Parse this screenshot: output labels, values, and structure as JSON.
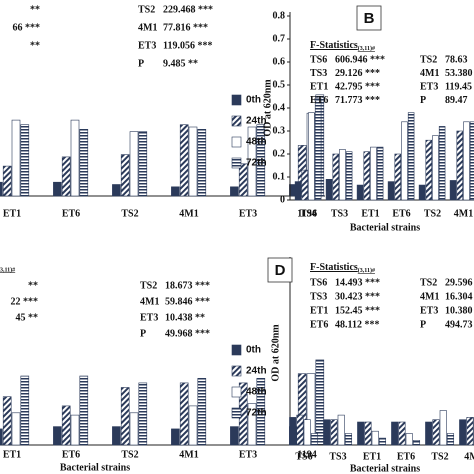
{
  "chart_data": [
    {
      "type": "bar",
      "categories": [
        "ET1",
        "ET6",
        "TS2",
        "4M1",
        "ET3",
        "1194"
      ],
      "series": [
        {
          "name": "0th",
          "color": "#2b3a5a",
          "hatch": "solid",
          "values": [
            0.06,
            0.06,
            0.05,
            0.04,
            0.04,
            0.05
          ]
        },
        {
          "name": "24th",
          "color": "#2b3a5a",
          "hatch": "diagonal",
          "values": [
            0.13,
            0.17,
            0.18,
            0.31,
            0.14,
            0.22
          ]
        },
        {
          "name": "48th",
          "color": "#2b3a5a",
          "hatch": "open",
          "values": [
            0.33,
            0.33,
            0.28,
            0.3,
            0.3,
            0.36
          ]
        },
        {
          "name": "72th",
          "color": "#2b3a5a",
          "hatch": "horizontal",
          "values": [
            0.31,
            0.29,
            0.28,
            0.29,
            0.31,
            0.44
          ]
        }
      ],
      "ylim": [
        0,
        0.8
      ],
      "legend": true,
      "statistics": {
        "rows": [
          [
            "TS2",
            "229.468 ***"
          ],
          [
            "4M1",
            "77.816 ***"
          ],
          [
            "ET3",
            "119.056 ***"
          ],
          [
            "P",
            "9.485 **"
          ]
        ],
        "fragments": [
          "**",
          "66 ***",
          "**"
        ]
      }
    },
    {
      "type": "bar",
      "panel_label": "B",
      "y_label": "OD  at 620nm",
      "x_label": "Bacterial  strains",
      "categories": [
        "TS6",
        "TS3",
        "ET1",
        "ET6",
        "TS2",
        "4M1"
      ],
      "series": [
        {
          "color": "#2b3a5a",
          "hatch": "solid",
          "values": [
            0.08,
            0.09,
            0.065,
            0.08,
            0.065,
            0.085
          ]
        },
        {
          "color": "#2b3a5a",
          "hatch": "diagonal",
          "values": [
            0.13,
            0.2,
            0.21,
            0.2,
            0.26,
            0.3
          ]
        },
        {
          "color": "#2b3a5a",
          "hatch": "open",
          "values": [
            0.38,
            0.22,
            0.23,
            0.34,
            0.28,
            0.34
          ]
        },
        {
          "color": "#2b3a5a",
          "hatch": "horizontal",
          "values": [
            0.44,
            0.21,
            0.23,
            0.38,
            0.32,
            0.34
          ]
        }
      ],
      "ylim": [
        0,
        0.8
      ],
      "yticks": [
        0,
        0.1,
        0.2,
        0.3,
        0.4,
        0.5,
        0.6,
        0.7,
        0.8
      ],
      "statistics": {
        "title": "F-Statistics",
        "subscript": "(3,11)#",
        "rows": [
          [
            "TS6",
            "606.946 ***"
          ],
          [
            "TS3",
            "29.126 ***"
          ],
          [
            "ET1",
            "42.795 ***"
          ],
          [
            "ET6",
            "71.773 ***"
          ],
          [
            "TS2",
            "78.63"
          ],
          [
            "4M1",
            "53.380"
          ],
          [
            "ET3",
            "119.45"
          ],
          [
            "P",
            "89.47"
          ]
        ]
      }
    },
    {
      "type": "bar",
      "x_label": "Bacterial  strains",
      "categories": [
        "ET1",
        "ET6",
        "TS2",
        "4M1",
        "ET3",
        "1194"
      ],
      "series": [
        {
          "name": "0th",
          "color": "#2b3a5a",
          "hatch": "solid",
          "values": [
            0.07,
            0.08,
            0.08,
            0.07,
            0.08,
            0.08
          ]
        },
        {
          "name": "24th",
          "color": "#2b3a5a",
          "hatch": "diagonal",
          "values": [
            0.21,
            0.17,
            0.25,
            0.27,
            0.27,
            0.31
          ]
        },
        {
          "name": "48th",
          "color": "#2b3a5a",
          "hatch": "open",
          "values": [
            0.14,
            0.13,
            0.14,
            0.17,
            0.18,
            0.31
          ]
        },
        {
          "name": "72th",
          "color": "#2b3a5a",
          "hatch": "horizontal",
          "values": [
            0.3,
            0.3,
            0.27,
            0.29,
            0.29,
            0.37
          ]
        }
      ],
      "ylim": [
        0,
        0.8
      ],
      "legend": true,
      "statistics": {
        "heading": "3,11)#",
        "rows": [
          [
            "TS2",
            "18.673 ***"
          ],
          [
            "4M1",
            "59.846 ***"
          ],
          [
            "ET3",
            "10.438 **"
          ],
          [
            "P",
            "49.968 ***"
          ]
        ],
        "fragments": [
          "**",
          "22 ***",
          "45 **"
        ]
      }
    },
    {
      "type": "bar",
      "panel_label": "D",
      "y_label": "OD  at 620nm",
      "x_label": "Bacterial  strains",
      "categories": [
        "TS6",
        "TS3",
        "ET1",
        "ET6",
        "TS2",
        "4M1"
      ],
      "series": [
        {
          "color": "#2b3a5a",
          "hatch": "solid",
          "values": [
            0.12,
            0.11,
            0.1,
            0.1,
            0.1,
            0.11
          ]
        },
        {
          "color": "#2b3a5a",
          "hatch": "diagonal",
          "values": [
            0.13,
            0.11,
            0.1,
            0.1,
            0.11,
            0.12
          ]
        },
        {
          "color": "#2b3a5a",
          "hatch": "open",
          "values": [
            0.11,
            0.13,
            0.06,
            0.05,
            0.15,
            0.12
          ]
        },
        {
          "color": "#2b3a5a",
          "hatch": "horizontal",
          "values": [
            0.05,
            0.05,
            0.03,
            0.02,
            0.05,
            0.05
          ]
        }
      ],
      "ylim": [
        0,
        0.8
      ],
      "statistics": {
        "title": "F-Statistics",
        "subscript": "(3,11)#",
        "rows": [
          [
            "TS6",
            "14.493 ***"
          ],
          [
            "TS3",
            "30.423 ***"
          ],
          [
            "ET1",
            "152.45 ***"
          ],
          [
            "ET6",
            "48.112 ***"
          ],
          [
            "TS2",
            "29.596"
          ],
          [
            "4M1",
            "16.304"
          ],
          [
            "ET3",
            "10.380"
          ],
          [
            "P",
            "494.73"
          ]
        ]
      }
    }
  ]
}
